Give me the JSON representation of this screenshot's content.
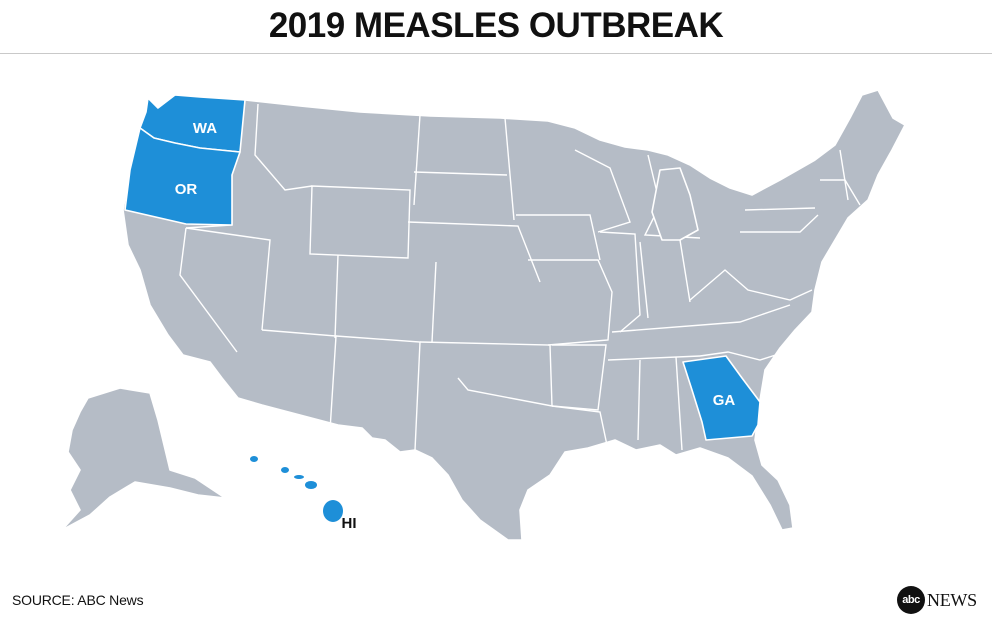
{
  "title": "2019 MEASLES OUTBREAK",
  "source": "SOURCE: ABC News",
  "logo": {
    "mark": "abc",
    "word": "NEWS"
  },
  "colors": {
    "highlight": "#1e8fd8",
    "base": "#b5bcc6",
    "border": "#ffffff"
  },
  "highlighted_states": [
    {
      "code": "WA",
      "label": "WA"
    },
    {
      "code": "OR",
      "label": "OR"
    },
    {
      "code": "GA",
      "label": "GA"
    },
    {
      "code": "HI",
      "label": "HI"
    }
  ]
}
